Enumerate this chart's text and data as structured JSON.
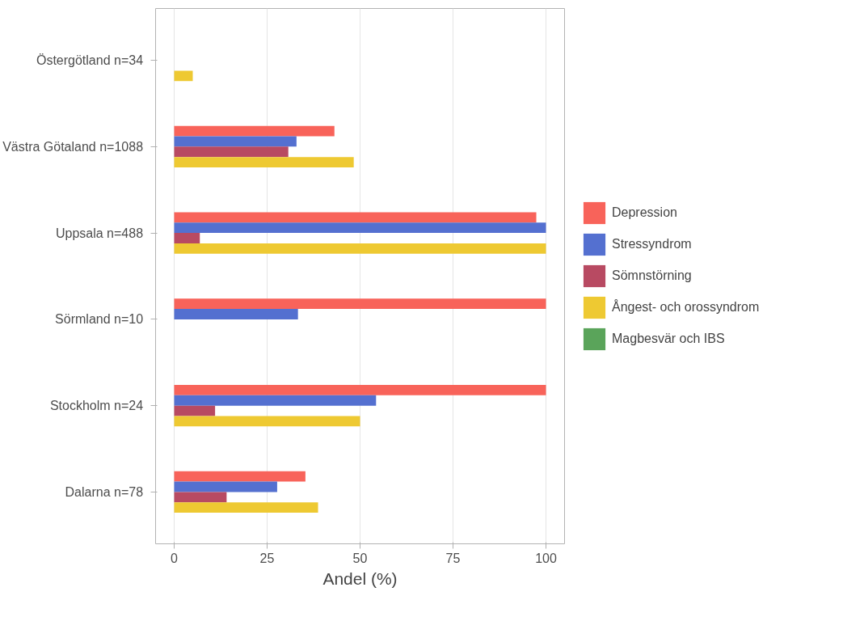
{
  "chart_data": {
    "type": "bar",
    "orientation": "horizontal",
    "xlabel": "Andel (%)",
    "categories": [
      "Östergötland  n=34",
      "Västra Götaland  n=1088",
      "Uppsala  n=488",
      "Sörmland  n=10",
      "Stockholm  n=24",
      "Dalarna  n=78"
    ],
    "series": [
      {
        "name": "Depression",
        "color": "#f8635a",
        "values": [
          null,
          43.1,
          97.4,
          100,
          100,
          35.3
        ]
      },
      {
        "name": "Stressyndrom",
        "color": "#5470d0",
        "values": [
          null,
          32.9,
          100,
          33.3,
          54.3,
          27.7
        ]
      },
      {
        "name": "Sömnstörning",
        "color": "#b84a62",
        "values": [
          null,
          30.7,
          6.9,
          null,
          11,
          14.1
        ]
      },
      {
        "name": "Ångest- och orossyndrom",
        "color": "#eec932",
        "values": [
          5,
          48.3,
          100,
          null,
          50,
          38.7
        ]
      },
      {
        "name": "Magbesvär och IBS",
        "color": "#5aa45a",
        "values": [
          null,
          null,
          null,
          null,
          null,
          null
        ]
      }
    ],
    "xlim": [
      -5,
      105
    ],
    "xticks": [
      0,
      25,
      50,
      75,
      100
    ],
    "grid": "x",
    "legend": "right"
  }
}
